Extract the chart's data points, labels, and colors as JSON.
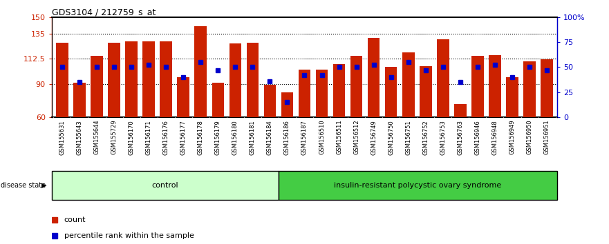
{
  "title": "GDS3104 / 212759_s_at",
  "samples": [
    "GSM155631",
    "GSM155643",
    "GSM155644",
    "GSM155729",
    "GSM156170",
    "GSM156171",
    "GSM156176",
    "GSM156177",
    "GSM156178",
    "GSM156179",
    "GSM156180",
    "GSM156181",
    "GSM156184",
    "GSM156186",
    "GSM156187",
    "GSM156510",
    "GSM156511",
    "GSM156512",
    "GSM156749",
    "GSM156750",
    "GSM156751",
    "GSM156752",
    "GSM156753",
    "GSM156763",
    "GSM156946",
    "GSM156948",
    "GSM156949",
    "GSM156950",
    "GSM156951"
  ],
  "bar_values": [
    127,
    91,
    115,
    127,
    128,
    128,
    128,
    96,
    142,
    91,
    126,
    127,
    89,
    82,
    103,
    103,
    108,
    115,
    131,
    105,
    118,
    106,
    130,
    72,
    115,
    116,
    96,
    110,
    112
  ],
  "percentile_values": [
    50,
    35,
    50,
    50,
    50,
    52,
    50,
    40,
    55,
    47,
    50,
    50,
    36,
    15,
    42,
    42,
    50,
    50,
    52,
    40,
    55,
    47,
    50,
    35,
    50,
    52,
    40,
    50,
    47
  ],
  "n_control": 13,
  "ylim_left": [
    60,
    150
  ],
  "ylim_right": [
    0,
    100
  ],
  "yticks_left": [
    60,
    90,
    112.5,
    135,
    150
  ],
  "ytick_labels_left": [
    "60",
    "90",
    "112.5",
    "135",
    "150"
  ],
  "yticks_right": [
    0,
    25,
    50,
    75,
    100
  ],
  "ytick_labels_right": [
    "0",
    "25",
    "50",
    "75",
    "100%"
  ],
  "bar_color": "#cc2200",
  "dot_color": "#0000cc",
  "control_bg": "#ccffcc",
  "disease_bg": "#44cc44",
  "xlabel_bg": "#cccccc",
  "legend_count_label": "count",
  "legend_percentile_label": "percentile rank within the sample",
  "disease_state_label": "disease state"
}
